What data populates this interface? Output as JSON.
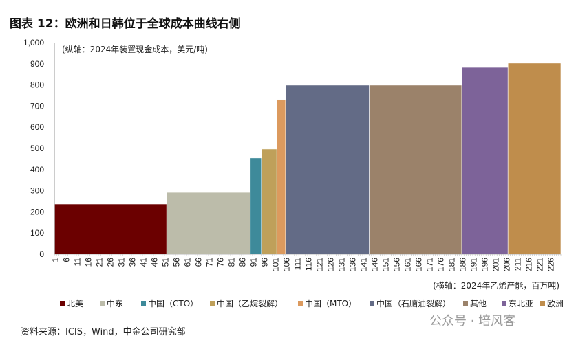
{
  "title": "图表 12：欧洲和日韩位于全球成本曲线右侧",
  "source": "资料来源：ICIS，Wind，中金公司研究部",
  "watermark": "公众号 · 培风客",
  "chart_data": {
    "type": "bar",
    "subtype": "variable-width cost curve",
    "ylabel": "(纵轴：2024年装置现金成本，美元/吨)",
    "xlabel": "(横轴：2024年乙烯产能，百万吨)",
    "ylim": [
      0,
      1000
    ],
    "yticks": [
      "0",
      "100",
      "200",
      "300",
      "400",
      "500",
      "600",
      "700",
      "800",
      "900",
      "1,000"
    ],
    "xlim": [
      0,
      230
    ],
    "xticks": [
      1,
      6,
      11,
      16,
      21,
      26,
      31,
      36,
      41,
      46,
      51,
      56,
      61,
      66,
      71,
      76,
      81,
      86,
      91,
      96,
      101,
      106,
      111,
      116,
      121,
      126,
      131,
      136,
      141,
      146,
      151,
      156,
      161,
      166,
      171,
      176,
      181,
      186,
      191,
      196,
      201,
      206,
      211,
      216,
      221,
      226
    ],
    "grid": false,
    "legend_position": "bottom",
    "series": [
      {
        "name": "北美",
        "capacity": 51,
        "cost": 237,
        "color": "#6b0000"
      },
      {
        "name": "中东",
        "capacity": 38,
        "cost": 292,
        "color": "#bcbcaa"
      },
      {
        "name": "中国（CTO）",
        "capacity": 5,
        "cost": 455,
        "color": "#3e8a9a"
      },
      {
        "name": "中国（乙烷裂解）",
        "capacity": 7,
        "cost": 497,
        "color": "#bfa05a"
      },
      {
        "name": "中国（MTO）",
        "capacity": 4,
        "cost": 731,
        "color": "#dc9a5e"
      },
      {
        "name": "中国（石脑油裂解）",
        "capacity": 38,
        "cost": 799,
        "color": "#636b86"
      },
      {
        "name": "其他",
        "capacity": 42,
        "cost": 799,
        "color": "#9b826a"
      },
      {
        "name": "东北亚",
        "capacity": 21,
        "cost": 883,
        "color": "#7d6399"
      },
      {
        "name": "欧洲",
        "capacity": 24,
        "cost": 903,
        "color": "#bf8d4c"
      }
    ]
  }
}
